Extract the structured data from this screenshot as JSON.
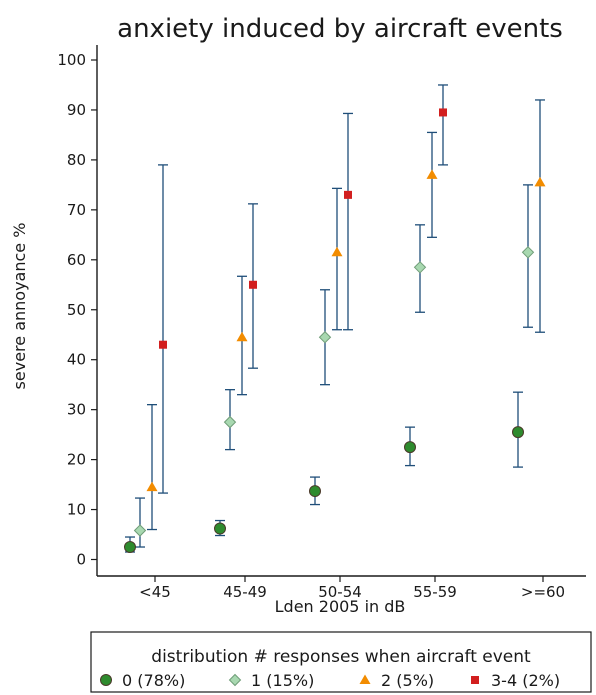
{
  "chart_data": {
    "type": "scatter",
    "title": "anxiety induced by aircraft events",
    "xlabel": "Lden 2005 in dB",
    "ylabel": "severe annoyance %",
    "categories": [
      "<45",
      "45-49",
      "50-54",
      "55-59",
      ">=60"
    ],
    "ylim": [
      0,
      100
    ],
    "yticks": [
      0,
      10,
      20,
      30,
      40,
      50,
      60,
      70,
      80,
      90,
      100
    ],
    "grid": false,
    "legend_title": "distribution # responses when aircraft event",
    "legend_position": "bottom",
    "error_bar_color": "#1f4e79",
    "series": [
      {
        "name": "0 (78%)",
        "marker": "circle",
        "color": "#2e8b2e",
        "values": [
          2.5,
          6.2,
          13.7,
          22.5,
          25.5
        ],
        "lower": [
          1.5,
          4.8,
          11.0,
          18.8,
          18.5
        ],
        "upper": [
          4.5,
          7.8,
          16.5,
          26.5,
          33.5
        ]
      },
      {
        "name": "1 (15%)",
        "marker": "diamond",
        "color": "#a8d8b0",
        "values": [
          5.8,
          27.5,
          44.5,
          58.5,
          61.5
        ],
        "lower": [
          2.5,
          22.0,
          35.0,
          49.5,
          46.5
        ],
        "upper": [
          12.3,
          34.0,
          54.0,
          67.0,
          75.0
        ]
      },
      {
        "name": "2 (5%)",
        "marker": "triangle",
        "color": "#f28c00",
        "values": [
          14.5,
          44.5,
          61.5,
          77.0,
          75.5
        ],
        "lower": [
          6.0,
          33.0,
          46.0,
          64.5,
          45.5
        ],
        "upper": [
          31.0,
          56.7,
          74.3,
          85.5,
          92.0
        ]
      },
      {
        "name": "3-4 (2%)",
        "marker": "square",
        "color": "#d21f1f",
        "values": [
          43.0,
          55.0,
          73.0,
          89.5,
          null
        ],
        "lower": [
          13.3,
          38.3,
          46.0,
          79.0,
          null
        ],
        "upper": [
          79.0,
          71.2,
          89.3,
          95.0,
          null
        ]
      }
    ]
  }
}
